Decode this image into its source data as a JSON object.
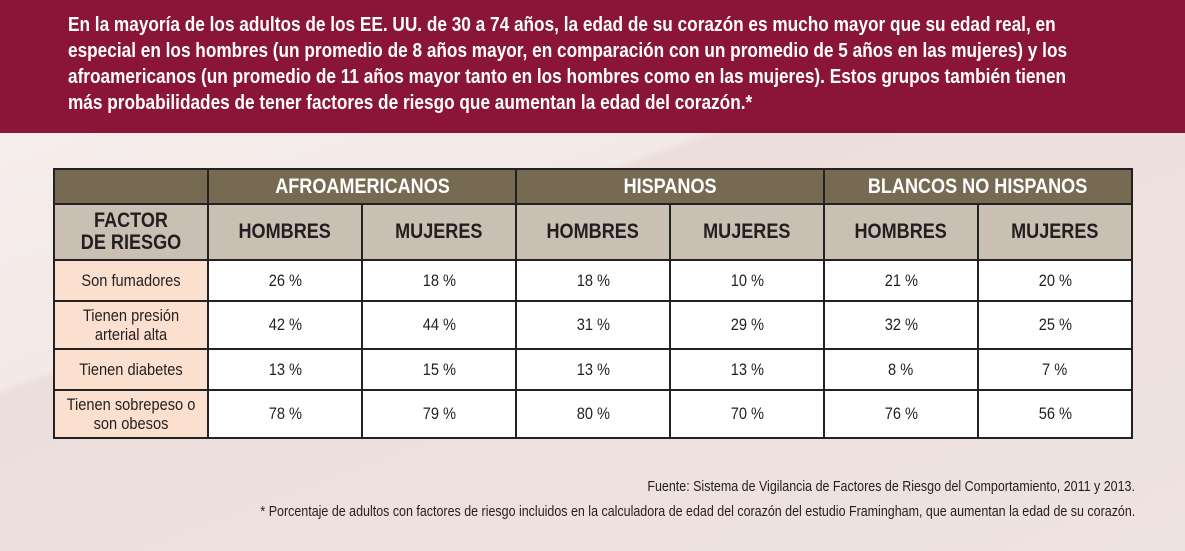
{
  "banner": {
    "text": "En la mayoría de los adultos de los EE. UU. de 30 a 74 años, la edad de su corazón es mucho mayor que su edad real, en especial en los hombres (un promedio de 8 años mayor, en comparación con un promedio de 5 años en las mujeres) y los afroamericanos (un promedio de 11 años mayor tanto en los hombres como en las mujeres). Estos grupos también tienen más probabilidades de tener factores de riesgo que aumentan la edad del corazón.*"
  },
  "table": {
    "groups": [
      "AFROAMERICANOS",
      "HISPANOS",
      "BLANCOS NO HISPANOS"
    ],
    "factor_header": "FACTOR DE RIESGO",
    "subheaders": [
      "HOMBRES",
      "MUJERES",
      "HOMBRES",
      "MUJERES",
      "HOMBRES",
      "MUJERES"
    ],
    "rows": [
      {
        "factor": "Son fumadores",
        "values": [
          "26 %",
          "18 %",
          "18 %",
          "10 %",
          "21 %",
          "20 %"
        ]
      },
      {
        "factor": "Tienen presión arterial alta",
        "values": [
          "42 %",
          "44 %",
          "31 %",
          "29 %",
          "32 %",
          "25 %"
        ]
      },
      {
        "factor": "Tienen diabetes",
        "values": [
          "13 %",
          "15 %",
          "13 %",
          "13 %",
          "8 %",
          "7 %"
        ]
      },
      {
        "factor": "Tienen sobrepeso o son obesos",
        "values": [
          "78 %",
          "79 %",
          "80 %",
          "70 %",
          "76 %",
          "56 %"
        ]
      }
    ]
  },
  "footer": {
    "source": "Fuente: Sistema de Vigilancia de Factores de Riesgo del Comportamiento, 2011 y 2013.",
    "note": "* Porcentaje de adultos con factores de riesgo incluidos en la calculadora de edad del corazón del estudio Framingham, que aumentan la edad de su corazón."
  },
  "colors": {
    "banner": "#8a1538",
    "group_header": "#766a53",
    "sub_header": "#c9bfb3",
    "factor_cell": "#fbe0cf",
    "background": "#efe3e0"
  }
}
